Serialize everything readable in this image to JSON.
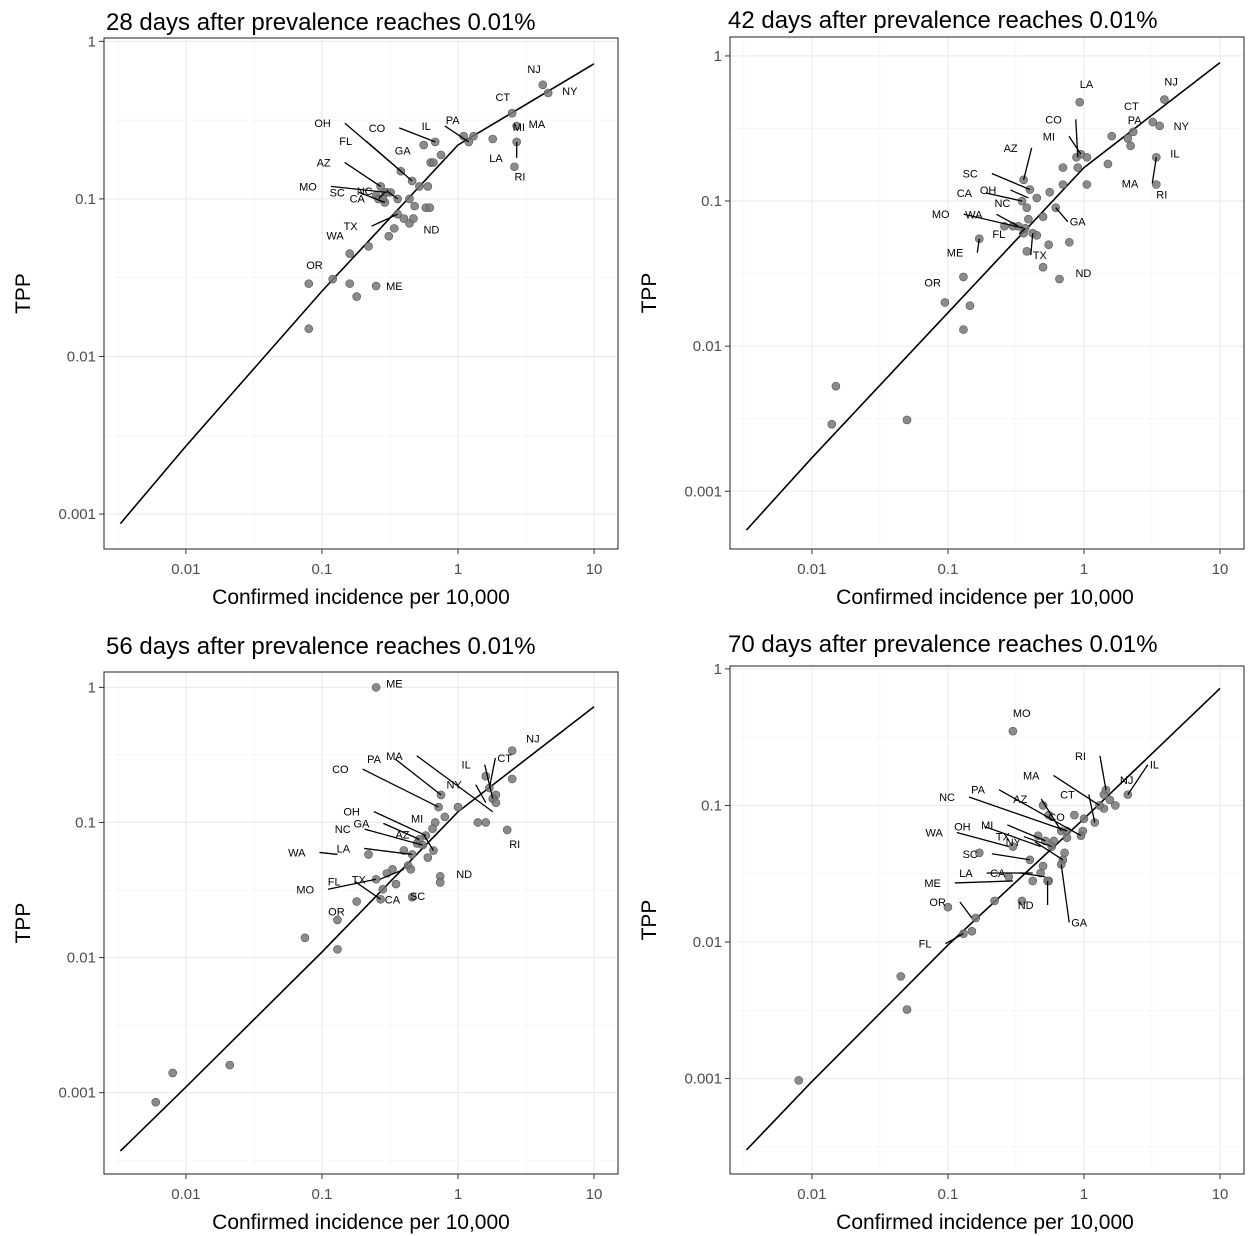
{
  "chart_data": [
    {
      "type": "scatter",
      "title": "28 days after prevalence reaches 0.01%",
      "xlabel": "Confirmed incidence per 10,000",
      "ylabel": "TPP",
      "x_scale": "log10",
      "y_scale": "log10",
      "xlim": [
        0.0025,
        15
      ],
      "ylim": [
        0.0006,
        1.05
      ],
      "xticks": [
        0.01,
        0.1,
        1,
        10
      ],
      "xtick_labels": [
        "0.01",
        "0.1",
        "1",
        "10"
      ],
      "yticks": [
        0.001,
        0.01,
        0.1,
        1
      ],
      "ytick_labels": [
        "0.001",
        "0.01",
        "0.1",
        "1"
      ],
      "grid": true,
      "fit_line": {
        "x": [
          0.0033,
          0.01,
          0.1,
          1,
          10
        ],
        "y": [
          0.00087,
          0.0027,
          0.026,
          0.22,
          0.72
        ]
      },
      "points": {
        "x": [
          4.2,
          4.6,
          2.5,
          2.7,
          1.1,
          1.3,
          1.2,
          1.8,
          2.7,
          0.68,
          0.56,
          0.75,
          0.63,
          0.66,
          2.6,
          0.38,
          0.46,
          0.52,
          0.27,
          0.3,
          0.32,
          0.25,
          0.26,
          0.29,
          0.36,
          0.44,
          0.48,
          0.58,
          0.6,
          0.28,
          0.36,
          0.44,
          0.47,
          0.62,
          0.29,
          0.4,
          0.34,
          0.31,
          0.16,
          0.22,
          0.08,
          0.12,
          0.16,
          0.18,
          0.25,
          0.08
        ],
        "y": [
          0.53,
          0.47,
          0.35,
          0.29,
          0.25,
          0.25,
          0.23,
          0.24,
          0.23,
          0.23,
          0.22,
          0.19,
          0.17,
          0.17,
          0.16,
          0.15,
          0.13,
          0.12,
          0.12,
          0.11,
          0.11,
          0.105,
          0.1,
          0.095,
          0.1,
          0.1,
          0.09,
          0.088,
          0.12,
          0.1,
          0.08,
          0.07,
          0.075,
          0.088,
          0.11,
          0.075,
          0.065,
          0.058,
          0.045,
          0.05,
          0.029,
          0.031,
          0.029,
          0.024,
          0.028,
          0.015
        ]
      },
      "labels": [
        {
          "text": "NJ",
          "x": 4.2,
          "y": 0.53
        },
        {
          "text": "NY",
          "x": 4.6,
          "y": 0.47
        },
        {
          "text": "CT",
          "x": 2.5,
          "y": 0.35
        },
        {
          "text": "MA",
          "x": 2.7,
          "y": 0.29
        },
        {
          "text": "PA",
          "x": 1.1,
          "y": 0.25
        },
        {
          "text": "IL",
          "x": 1.2,
          "y": 0.23
        },
        {
          "text": "MI",
          "x": 1.8,
          "y": 0.24
        },
        {
          "text": "LA",
          "x": 2.7,
          "y": 0.23
        },
        {
          "text": "RI",
          "x": 2.6,
          "y": 0.16
        },
        {
          "text": "OH",
          "x": 0.38,
          "y": 0.15
        },
        {
          "text": "CO",
          "x": 0.68,
          "y": 0.23
        },
        {
          "text": "FL",
          "x": 0.46,
          "y": 0.13
        },
        {
          "text": "GA",
          "x": 0.63,
          "y": 0.17
        },
        {
          "text": "AZ",
          "x": 0.27,
          "y": 0.12
        },
        {
          "text": "NC",
          "x": 0.36,
          "y": 0.1
        },
        {
          "text": "MO",
          "x": 0.3,
          "y": 0.11
        },
        {
          "text": "SC",
          "x": 0.29,
          "y": 0.095
        },
        {
          "text": "TX",
          "x": 0.36,
          "y": 0.08
        },
        {
          "text": "CA",
          "x": 0.29,
          "y": 0.11
        },
        {
          "text": "ND",
          "x": 0.44,
          "y": 0.07
        },
        {
          "text": "WA",
          "x": 0.16,
          "y": 0.045
        },
        {
          "text": "OR",
          "x": 0.12,
          "y": 0.031
        },
        {
          "text": "ME",
          "x": 0.25,
          "y": 0.028
        }
      ]
    },
    {
      "type": "scatter",
      "title": "42 days after prevalence reaches 0.01%",
      "xlabel": "Confirmed incidence per 10,000",
      "ylabel": "TPP",
      "x_scale": "log10",
      "y_scale": "log10",
      "xlim": [
        0.0025,
        15
      ],
      "ylim": [
        0.0004,
        1.35
      ],
      "xticks": [
        0.01,
        0.1,
        1,
        10
      ],
      "xtick_labels": [
        "0.01",
        "0.1",
        "1",
        "10"
      ],
      "yticks": [
        0.001,
        0.01,
        0.1,
        1
      ],
      "ytick_labels": [
        "0.001",
        "0.01",
        "0.1",
        "1"
      ],
      "grid": true,
      "fit_line": {
        "x": [
          0.0033,
          0.01,
          0.1,
          1,
          10
        ],
        "y": [
          0.00054,
          0.0017,
          0.017,
          0.17,
          0.9
        ]
      },
      "points": {
        "x": [
          3.9,
          0.93,
          3.2,
          3.6,
          2.3,
          1.6,
          2.1,
          2.2,
          1.5,
          3.4,
          3.4,
          0.95,
          0.88,
          1.05,
          0.9,
          0.7,
          0.56,
          0.36,
          0.4,
          0.45,
          0.35,
          0.38,
          0.39,
          0.5,
          0.36,
          0.62,
          0.7,
          1.05,
          0.3,
          0.33,
          0.26,
          0.37,
          0.42,
          0.45,
          0.55,
          0.38,
          0.78,
          0.5,
          0.66,
          0.17,
          0.13,
          0.145,
          0.095,
          0.13,
          0.015,
          0.014,
          0.05
        ],
        "y": [
          0.5,
          0.48,
          0.35,
          0.33,
          0.3,
          0.28,
          0.27,
          0.24,
          0.18,
          0.2,
          0.13,
          0.21,
          0.2,
          0.2,
          0.17,
          0.17,
          0.115,
          0.14,
          0.12,
          0.105,
          0.1,
          0.09,
          0.075,
          0.078,
          0.06,
          0.09,
          0.13,
          0.13,
          0.067,
          0.067,
          0.067,
          0.065,
          0.06,
          0.058,
          0.05,
          0.045,
          0.052,
          0.035,
          0.029,
          0.055,
          0.03,
          0.019,
          0.02,
          0.013,
          0.0053,
          0.0029,
          0.0031
        ]
      },
      "labels": [
        {
          "text": "NJ",
          "x": 3.9,
          "y": 0.5
        },
        {
          "text": "LA",
          "x": 0.93,
          "y": 0.48
        },
        {
          "text": "CT",
          "x": 3.2,
          "y": 0.35
        },
        {
          "text": "NY",
          "x": 3.6,
          "y": 0.33
        },
        {
          "text": "CO",
          "x": 0.9,
          "y": 0.2
        },
        {
          "text": "MI",
          "x": 0.95,
          "y": 0.21
        },
        {
          "text": "PA",
          "x": 1.6,
          "y": 0.28
        },
        {
          "text": "AZ",
          "x": 0.36,
          "y": 0.14
        },
        {
          "text": "IL",
          "x": 3.4,
          "y": 0.2
        },
        {
          "text": "MA",
          "x": 3.4,
          "y": 0.2
        },
        {
          "text": "RI",
          "x": 3.4,
          "y": 0.13
        },
        {
          "text": "SC",
          "x": 0.4,
          "y": 0.12
        },
        {
          "text": "OH",
          "x": 0.39,
          "y": 0.105
        },
        {
          "text": "CA",
          "x": 0.35,
          "y": 0.1
        },
        {
          "text": "NC",
          "x": 0.39,
          "y": 0.075
        },
        {
          "text": "GA",
          "x": 0.62,
          "y": 0.09
        },
        {
          "text": "MO",
          "x": 0.36,
          "y": 0.065
        },
        {
          "text": "WA",
          "x": 0.33,
          "y": 0.067
        },
        {
          "text": "ME",
          "x": 0.17,
          "y": 0.055
        },
        {
          "text": "FL",
          "x": 0.37,
          "y": 0.065
        },
        {
          "text": "TX",
          "x": 0.42,
          "y": 0.06
        },
        {
          "text": "ND",
          "x": 0.66,
          "y": 0.029
        },
        {
          "text": "OR",
          "x": 0.095,
          "y": 0.02
        }
      ]
    },
    {
      "type": "scatter",
      "title": "56 days after prevalence reaches 0.01%",
      "xlabel": "Confirmed incidence per 10,000",
      "ylabel": "TPP",
      "x_scale": "log10",
      "y_scale": "log10",
      "xlim": [
        0.0025,
        15
      ],
      "ylim": [
        0.00025,
        1.3
      ],
      "xticks": [
        0.01,
        0.1,
        1,
        10
      ],
      "xtick_labels": [
        "0.01",
        "0.1",
        "1",
        "10"
      ],
      "yticks": [
        0.001,
        0.01,
        0.1,
        1
      ],
      "ytick_labels": [
        "0.001",
        "0.01",
        "0.1",
        "1"
      ],
      "grid": true,
      "fit_line": {
        "x": [
          0.0033,
          0.01,
          0.1,
          1,
          10
        ],
        "y": [
          0.00037,
          0.0011,
          0.011,
          0.12,
          0.72
        ]
      },
      "points": {
        "x": [
          0.25,
          2.5,
          2.5,
          1.9,
          1.6,
          1.7,
          1.8,
          1.9,
          2.3,
          1.0,
          1.4,
          1.6,
          0.75,
          0.72,
          0.8,
          0.68,
          0.65,
          0.58,
          0.52,
          0.5,
          0.55,
          0.66,
          0.6,
          0.46,
          0.43,
          0.4,
          0.33,
          0.22,
          0.3,
          0.25,
          0.28,
          0.35,
          0.45,
          0.74,
          0.74,
          0.46,
          0.27,
          0.18,
          0.13,
          0.075,
          0.13,
          0.008,
          0.021,
          0.006
        ],
        "y": [
          1.0,
          0.34,
          0.21,
          0.16,
          0.22,
          0.18,
          0.15,
          0.14,
          0.088,
          0.13,
          0.1,
          0.1,
          0.16,
          0.13,
          0.11,
          0.1,
          0.09,
          0.08,
          0.075,
          0.07,
          0.068,
          0.062,
          0.055,
          0.058,
          0.048,
          0.062,
          0.045,
          0.058,
          0.042,
          0.038,
          0.032,
          0.035,
          0.045,
          0.04,
          0.036,
          0.028,
          0.027,
          0.026,
          0.019,
          0.014,
          0.0115,
          0.0014,
          0.0016,
          0.00085
        ]
      },
      "labels": [
        {
          "text": "ME",
          "x": 0.25,
          "y": 1.0
        },
        {
          "text": "NJ",
          "x": 2.5,
          "y": 0.34
        },
        {
          "text": "CT",
          "x": 1.7,
          "y": 0.18
        },
        {
          "text": "IL",
          "x": 1.8,
          "y": 0.15
        },
        {
          "text": "MA",
          "x": 1.8,
          "y": 0.12
        },
        {
          "text": "NY",
          "x": 1.6,
          "y": 0.14
        },
        {
          "text": "CO",
          "x": 0.72,
          "y": 0.13
        },
        {
          "text": "PA",
          "x": 0.75,
          "y": 0.16
        },
        {
          "text": "MI",
          "x": 0.68,
          "y": 0.1
        },
        {
          "text": "RI",
          "x": 2.3,
          "y": 0.088
        },
        {
          "text": "OH",
          "x": 0.58,
          "y": 0.08
        },
        {
          "text": "GA",
          "x": 0.52,
          "y": 0.075
        },
        {
          "text": "NC",
          "x": 0.55,
          "y": 0.068
        },
        {
          "text": "AZ",
          "x": 0.66,
          "y": 0.062
        },
        {
          "text": "WA",
          "x": 0.13,
          "y": 0.058
        },
        {
          "text": "LA",
          "x": 0.46,
          "y": 0.058
        },
        {
          "text": "TX",
          "x": 0.4,
          "y": 0.045
        },
        {
          "text": "ND",
          "x": 0.74,
          "y": 0.04
        },
        {
          "text": "CA",
          "x": 0.28,
          "y": 0.032
        },
        {
          "text": "MO",
          "x": 0.25,
          "y": 0.038
        },
        {
          "text": "OR",
          "x": 0.18,
          "y": 0.026
        },
        {
          "text": "SC",
          "x": 0.35,
          "y": 0.035
        },
        {
          "text": "FL",
          "x": 0.27,
          "y": 0.027
        }
      ]
    },
    {
      "type": "scatter",
      "title": "70 days after prevalence reaches 0.01%",
      "xlabel": "Confirmed incidence per 10,000",
      "ylabel": "TPP",
      "x_scale": "log10",
      "y_scale": "log10",
      "xlim": [
        0.0025,
        15
      ],
      "ylim": [
        0.0002,
        1.05
      ],
      "xticks": [
        0.01,
        0.1,
        1,
        10
      ],
      "xtick_labels": [
        "0.01",
        "0.1",
        "1",
        "10"
      ],
      "yticks": [
        0.001,
        0.01,
        0.1,
        1
      ],
      "ytick_labels": [
        "0.001",
        "0.01",
        "0.1",
        "1"
      ],
      "grid": true,
      "fit_line": {
        "x": [
          0.0033,
          0.01,
          0.1,
          1,
          10
        ],
        "y": [
          0.0003,
          0.00095,
          0.0095,
          0.08,
          0.72
        ]
      },
      "points": {
        "x": [
          0.3,
          2.1,
          1.7,
          1.55,
          1.45,
          1.4,
          1.4,
          1.3,
          1.2,
          1.0,
          0.98,
          0.85,
          0.68,
          0.55,
          0.5,
          0.75,
          0.6,
          0.95,
          0.75,
          0.72,
          0.7,
          0.58,
          0.52,
          0.46,
          0.4,
          0.3,
          0.55,
          0.48,
          0.42,
          0.35,
          0.5,
          0.54,
          0.68,
          0.17,
          0.28,
          0.22,
          0.16,
          0.1,
          0.15,
          0.13,
          0.045,
          0.05,
          0.008
        ],
        "y": [
          0.35,
          0.12,
          0.1,
          0.11,
          0.13,
          0.12,
          0.095,
          0.1,
          0.075,
          0.08,
          0.065,
          0.085,
          0.065,
          0.085,
          0.1,
          0.065,
          0.055,
          0.06,
          0.058,
          0.045,
          0.04,
          0.05,
          0.055,
          0.06,
          0.04,
          0.05,
          0.028,
          0.032,
          0.028,
          0.02,
          0.036,
          0.028,
          0.037,
          0.045,
          0.03,
          0.02,
          0.015,
          0.018,
          0.012,
          0.0115,
          0.0056,
          0.0032,
          0.00097
        ]
      },
      "labels": [
        {
          "text": "MO",
          "x": 0.3,
          "y": 0.35
        },
        {
          "text": "RI",
          "x": 1.45,
          "y": 0.13
        },
        {
          "text": "IL",
          "x": 2.1,
          "y": 0.12
        },
        {
          "text": "MA",
          "x": 1.3,
          "y": 0.1
        },
        {
          "text": "NJ",
          "x": 1.55,
          "y": 0.11
        },
        {
          "text": "CT",
          "x": 1.2,
          "y": 0.075
        },
        {
          "text": "PA",
          "x": 0.95,
          "y": 0.06
        },
        {
          "text": "AZ",
          "x": 0.68,
          "y": 0.065
        },
        {
          "text": "CO",
          "x": 0.98,
          "y": 0.065
        },
        {
          "text": "NC",
          "x": 0.75,
          "y": 0.065
        },
        {
          "text": "OH",
          "x": 0.48,
          "y": 0.05
        },
        {
          "text": "NY",
          "x": 0.7,
          "y": 0.04
        },
        {
          "text": "WA",
          "x": 0.28,
          "y": 0.05
        },
        {
          "text": "TX",
          "x": 0.58,
          "y": 0.05
        },
        {
          "text": "MI",
          "x": 0.52,
          "y": 0.055
        },
        {
          "text": "SC",
          "x": 0.4,
          "y": 0.04
        },
        {
          "text": "ME",
          "x": 0.3,
          "y": 0.028
        },
        {
          "text": "LA",
          "x": 0.42,
          "y": 0.032
        },
        {
          "text": "CA",
          "x": 0.52,
          "y": 0.03
        },
        {
          "text": "ND",
          "x": 0.54,
          "y": 0.028
        },
        {
          "text": "GA",
          "x": 0.68,
          "y": 0.037
        },
        {
          "text": "OR",
          "x": 0.15,
          "y": 0.015
        },
        {
          "text": "FL",
          "x": 0.13,
          "y": 0.0115
        }
      ]
    }
  ]
}
